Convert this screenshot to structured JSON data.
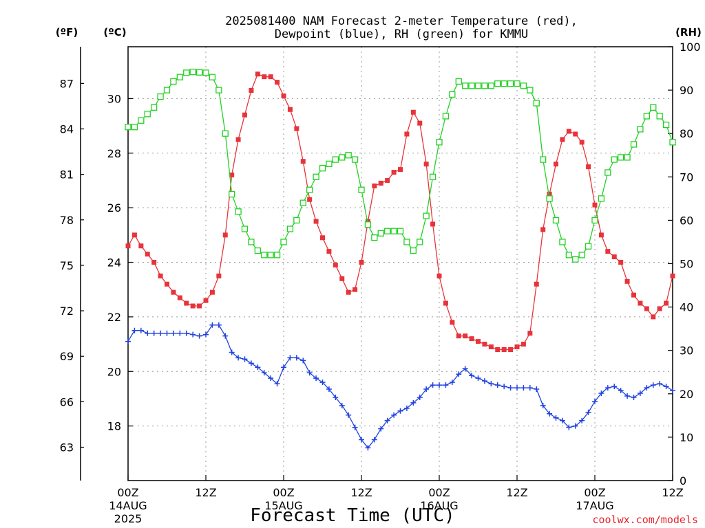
{
  "chart_data": {
    "type": "line",
    "title_line1": "2025081400 NAM Forecast 2-meter Temperature (red),",
    "title_line2": "Dewpoint (blue), RH (green) for KMMU",
    "unit_f": "(ºF)",
    "unit_c": "(ºC)",
    "unit_rh": "(RH)",
    "xlabel": "Forecast Time (UTC)",
    "credit": "coolwx.com/models",
    "x_range_hours": [
      0,
      84
    ],
    "y_celsius_range": [
      16.0,
      31.9
    ],
    "y_rh_range": [
      0,
      100
    ],
    "grid": true,
    "x_ticks": [
      {
        "hour": 0,
        "label": "00Z",
        "sub1": "14AUG",
        "sub2": "2025"
      },
      {
        "hour": 12,
        "label": "12Z",
        "sub1": "",
        "sub2": ""
      },
      {
        "hour": 24,
        "label": "00Z",
        "sub1": "15AUG",
        "sub2": ""
      },
      {
        "hour": 36,
        "label": "12Z",
        "sub1": "",
        "sub2": ""
      },
      {
        "hour": 48,
        "label": "00Z",
        "sub1": "16AUG",
        "sub2": ""
      },
      {
        "hour": 60,
        "label": "12Z",
        "sub1": "",
        "sub2": ""
      },
      {
        "hour": 72,
        "label": "00Z",
        "sub1": "17AUG",
        "sub2": ""
      },
      {
        "hour": 84,
        "label": "12Z",
        "sub1": "",
        "sub2": ""
      }
    ],
    "c_ticks": [
      "18",
      "20",
      "22",
      "24",
      "26",
      "28",
      "30"
    ],
    "f_ticks": [
      "63",
      "66",
      "69",
      "72",
      "75",
      "78",
      "81",
      "84",
      "87"
    ],
    "rh_ticks": [
      "0",
      "10",
      "20",
      "30",
      "40",
      "50",
      "60",
      "70",
      "80",
      "90",
      "100"
    ],
    "series": [
      {
        "key": "temperature",
        "color": "#e8333a",
        "marker": "filled-square",
        "unit": "C",
        "values": [
          [
            0,
            24.6
          ],
          [
            1,
            25.0
          ],
          [
            2,
            24.6
          ],
          [
            3,
            24.3
          ],
          [
            4,
            24.0
          ],
          [
            5,
            23.5
          ],
          [
            6,
            23.2
          ],
          [
            7,
            22.9
          ],
          [
            8,
            22.7
          ],
          [
            9,
            22.5
          ],
          [
            10,
            22.4
          ],
          [
            11,
            22.4
          ],
          [
            12,
            22.6
          ],
          [
            13,
            22.9
          ],
          [
            14,
            23.5
          ],
          [
            15,
            25.0
          ],
          [
            16,
            27.2
          ],
          [
            17,
            28.5
          ],
          [
            18,
            29.4
          ],
          [
            19,
            30.3
          ],
          [
            20,
            30.9
          ],
          [
            21,
            30.8
          ],
          [
            22,
            30.8
          ],
          [
            23,
            30.6
          ],
          [
            24,
            30.1
          ],
          [
            25,
            29.6
          ],
          [
            26,
            28.9
          ],
          [
            27,
            27.7
          ],
          [
            28,
            26.3
          ],
          [
            29,
            25.5
          ],
          [
            30,
            24.9
          ],
          [
            31,
            24.4
          ],
          [
            32,
            23.9
          ],
          [
            33,
            23.4
          ],
          [
            34,
            22.9
          ],
          [
            35,
            23.0
          ],
          [
            36,
            24.0
          ],
          [
            37,
            25.5
          ],
          [
            38,
            26.8
          ],
          [
            39,
            26.9
          ],
          [
            40,
            27.0
          ],
          [
            41,
            27.3
          ],
          [
            42,
            27.4
          ],
          [
            43,
            28.7
          ],
          [
            44,
            29.5
          ],
          [
            45,
            29.1
          ],
          [
            46,
            27.6
          ],
          [
            47,
            25.4
          ],
          [
            48,
            23.5
          ],
          [
            49,
            22.5
          ],
          [
            50,
            21.8
          ],
          [
            51,
            21.3
          ],
          [
            52,
            21.3
          ],
          [
            53,
            21.2
          ],
          [
            54,
            21.1
          ],
          [
            55,
            21.0
          ],
          [
            56,
            20.9
          ],
          [
            57,
            20.8
          ],
          [
            58,
            20.8
          ],
          [
            59,
            20.8
          ],
          [
            60,
            20.9
          ],
          [
            61,
            21.0
          ],
          [
            62,
            21.4
          ],
          [
            63,
            23.2
          ],
          [
            64,
            25.2
          ],
          [
            65,
            26.5
          ],
          [
            66,
            27.6
          ],
          [
            67,
            28.5
          ],
          [
            68,
            28.8
          ],
          [
            69,
            28.7
          ],
          [
            70,
            28.4
          ],
          [
            71,
            27.5
          ],
          [
            72,
            26.1
          ],
          [
            73,
            25.0
          ],
          [
            74,
            24.4
          ],
          [
            75,
            24.2
          ],
          [
            76,
            24.0
          ],
          [
            77,
            23.3
          ],
          [
            78,
            22.8
          ],
          [
            79,
            22.5
          ],
          [
            80,
            22.3
          ],
          [
            81,
            22.0
          ],
          [
            82,
            22.3
          ],
          [
            83,
            22.5
          ],
          [
            84,
            23.5
          ]
        ]
      },
      {
        "key": "dewpoint",
        "color": "#2042e0",
        "marker": "plus",
        "unit": "C",
        "values": [
          [
            0,
            21.1
          ],
          [
            1,
            21.5
          ],
          [
            2,
            21.5
          ],
          [
            3,
            21.4
          ],
          [
            4,
            21.4
          ],
          [
            5,
            21.4
          ],
          [
            6,
            21.4
          ],
          [
            7,
            21.4
          ],
          [
            8,
            21.4
          ],
          [
            9,
            21.4
          ],
          [
            10,
            21.35
          ],
          [
            11,
            21.3
          ],
          [
            12,
            21.35
          ],
          [
            13,
            21.7
          ],
          [
            14,
            21.7
          ],
          [
            15,
            21.3
          ],
          [
            16,
            20.7
          ],
          [
            17,
            20.5
          ],
          [
            18,
            20.45
          ],
          [
            19,
            20.3
          ],
          [
            20,
            20.15
          ],
          [
            21,
            19.95
          ],
          [
            22,
            19.75
          ],
          [
            23,
            19.55
          ],
          [
            24,
            20.15
          ],
          [
            25,
            20.5
          ],
          [
            26,
            20.5
          ],
          [
            27,
            20.4
          ],
          [
            28,
            19.95
          ],
          [
            29,
            19.75
          ],
          [
            30,
            19.6
          ],
          [
            31,
            19.35
          ],
          [
            32,
            19.05
          ],
          [
            33,
            18.75
          ],
          [
            34,
            18.4
          ],
          [
            35,
            17.95
          ],
          [
            36,
            17.5
          ],
          [
            37,
            17.2
          ],
          [
            38,
            17.5
          ],
          [
            39,
            17.9
          ],
          [
            40,
            18.2
          ],
          [
            41,
            18.4
          ],
          [
            42,
            18.55
          ],
          [
            43,
            18.65
          ],
          [
            44,
            18.85
          ],
          [
            45,
            19.05
          ],
          [
            46,
            19.35
          ],
          [
            47,
            19.5
          ],
          [
            48,
            19.5
          ],
          [
            49,
            19.5
          ],
          [
            50,
            19.6
          ],
          [
            51,
            19.9
          ],
          [
            52,
            20.1
          ],
          [
            53,
            19.85
          ],
          [
            54,
            19.75
          ],
          [
            55,
            19.65
          ],
          [
            56,
            19.55
          ],
          [
            57,
            19.5
          ],
          [
            58,
            19.45
          ],
          [
            59,
            19.4
          ],
          [
            60,
            19.4
          ],
          [
            61,
            19.4
          ],
          [
            62,
            19.4
          ],
          [
            63,
            19.35
          ],
          [
            64,
            18.75
          ],
          [
            65,
            18.45
          ],
          [
            66,
            18.3
          ],
          [
            67,
            18.2
          ],
          [
            68,
            17.95
          ],
          [
            69,
            18.0
          ],
          [
            70,
            18.2
          ],
          [
            71,
            18.5
          ],
          [
            72,
            18.9
          ],
          [
            73,
            19.2
          ],
          [
            74,
            19.4
          ],
          [
            75,
            19.45
          ],
          [
            76,
            19.3
          ],
          [
            77,
            19.1
          ],
          [
            78,
            19.05
          ],
          [
            79,
            19.2
          ],
          [
            80,
            19.4
          ],
          [
            81,
            19.5
          ],
          [
            82,
            19.55
          ],
          [
            83,
            19.45
          ],
          [
            84,
            19.3
          ]
        ]
      },
      {
        "key": "relative_humidity",
        "color": "#22d122",
        "marker": "open-square",
        "unit": "%",
        "values": [
          [
            0,
            81.5
          ],
          [
            1,
            81.5
          ],
          [
            2,
            83
          ],
          [
            3,
            84.5
          ],
          [
            4,
            86
          ],
          [
            5,
            88.5
          ],
          [
            6,
            90
          ],
          [
            7,
            92
          ],
          [
            8,
            93
          ],
          [
            9,
            94
          ],
          [
            10,
            94.2
          ],
          [
            11,
            94.1
          ],
          [
            12,
            94
          ],
          [
            13,
            93
          ],
          [
            14,
            90
          ],
          [
            15,
            80
          ],
          [
            16,
            66
          ],
          [
            17,
            62
          ],
          [
            18,
            58
          ],
          [
            19,
            55
          ],
          [
            20,
            53
          ],
          [
            21,
            52
          ],
          [
            22,
            52
          ],
          [
            23,
            52
          ],
          [
            24,
            55
          ],
          [
            25,
            58
          ],
          [
            26,
            60
          ],
          [
            27,
            64
          ],
          [
            28,
            67
          ],
          [
            29,
            70
          ],
          [
            30,
            72
          ],
          [
            31,
            73
          ],
          [
            32,
            74
          ],
          [
            33,
            74.5
          ],
          [
            34,
            75
          ],
          [
            35,
            74
          ],
          [
            36,
            67
          ],
          [
            37,
            59
          ],
          [
            38,
            56
          ],
          [
            39,
            57
          ],
          [
            40,
            57.5
          ],
          [
            41,
            57.5
          ],
          [
            42,
            57.5
          ],
          [
            43,
            55
          ],
          [
            44,
            53
          ],
          [
            45,
            55
          ],
          [
            46,
            61
          ],
          [
            47,
            70
          ],
          [
            48,
            78
          ],
          [
            49,
            84
          ],
          [
            50,
            89
          ],
          [
            51,
            92
          ],
          [
            52,
            91
          ],
          [
            53,
            91
          ],
          [
            54,
            91
          ],
          [
            55,
            91
          ],
          [
            56,
            91
          ],
          [
            57,
            91.5
          ],
          [
            58,
            91.5
          ],
          [
            59,
            91.5
          ],
          [
            60,
            91.5
          ],
          [
            61,
            91
          ],
          [
            62,
            90
          ],
          [
            63,
            87
          ],
          [
            64,
            74
          ],
          [
            65,
            65
          ],
          [
            66,
            60
          ],
          [
            67,
            55
          ],
          [
            68,
            52
          ],
          [
            69,
            51
          ],
          [
            70,
            52
          ],
          [
            71,
            54
          ],
          [
            72,
            60
          ],
          [
            73,
            65
          ],
          [
            74,
            71
          ],
          [
            75,
            74
          ],
          [
            76,
            74.5
          ],
          [
            77,
            74.5
          ],
          [
            78,
            77.5
          ],
          [
            79,
            81
          ],
          [
            80,
            84
          ],
          [
            81,
            86
          ],
          [
            82,
            84
          ],
          [
            83,
            82
          ],
          [
            84,
            78
          ]
        ]
      }
    ]
  }
}
